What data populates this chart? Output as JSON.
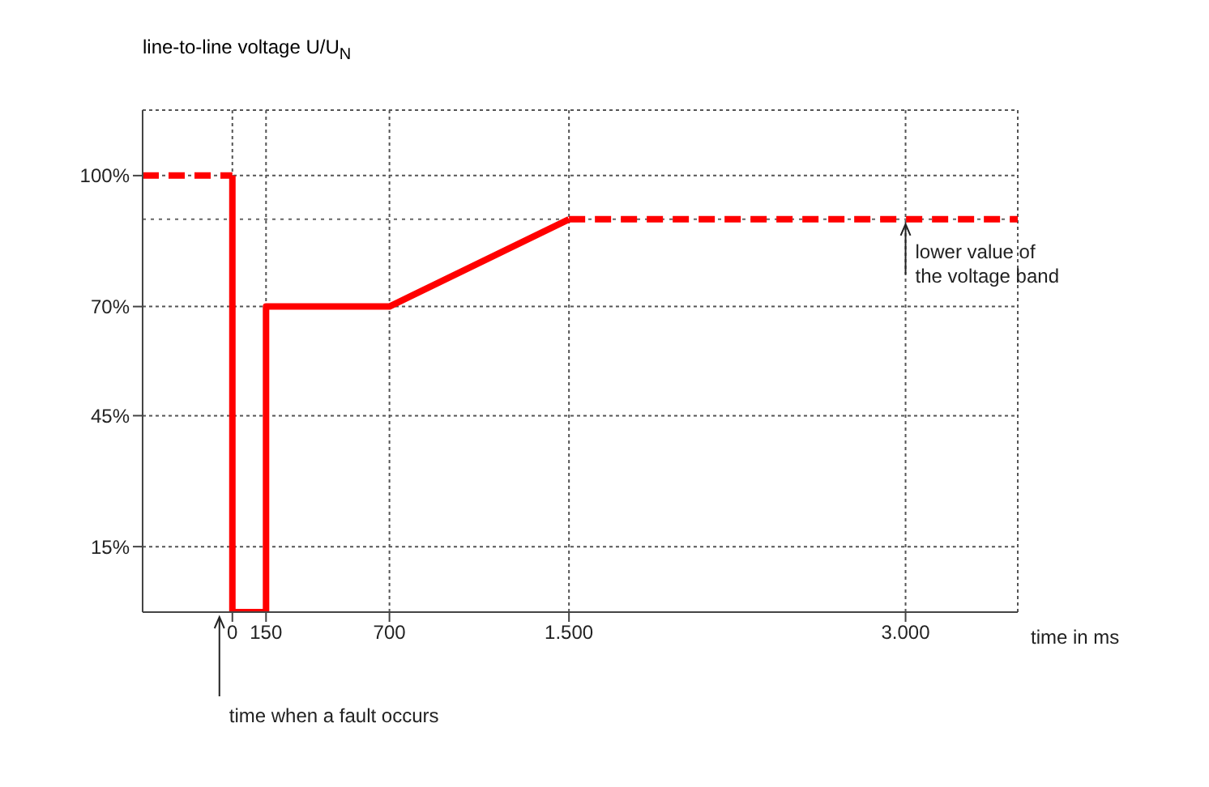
{
  "chart_data": {
    "type": "line",
    "ylabel": "line-to-line voltage U/U$_{N}$",
    "xlabel": "time in ms",
    "xlim": [
      -400,
      3500
    ],
    "xticks": [
      0,
      150,
      700,
      {
        "value": 1500,
        "label": "1.500"
      },
      {
        "value": 3000,
        "label": "3.000"
      }
    ],
    "ylim": [
      0,
      115
    ],
    "yticks": [
      {
        "value": 15,
        "label": "15%"
      },
      {
        "value": 45,
        "label": "45%"
      },
      {
        "value": 70,
        "label": "70%"
      },
      {
        "value": 100,
        "label": "100%"
      }
    ],
    "grid": true,
    "legend": false,
    "marker": "none",
    "series": [
      {
        "color": "#ff0000",
        "line_style": "dashed",
        "x": [
          -400,
          0
        ],
        "values": [
          100,
          100
        ]
      },
      {
        "color": "#ff0000",
        "line_style": "solid",
        "x": [
          0,
          0,
          150,
          150,
          700,
          1500
        ],
        "values": [
          100,
          0,
          0,
          70,
          70,
          90
        ]
      },
      {
        "color": "#ff0000",
        "line_style": "dashed",
        "x": [
          1500,
          3500
        ],
        "values": [
          90,
          90
        ]
      }
    ],
    "ref_lines": [
      {
        "axis": "y",
        "value": 90,
        "color": "#666666",
        "line_style": "dotted"
      }
    ],
    "annotations": [
      {
        "text": "lower value of the voltage band",
        "x": 3000,
        "y": 90
      },
      {
        "text": "time when a fault occurs",
        "x": 0,
        "y": 0
      }
    ]
  }
}
